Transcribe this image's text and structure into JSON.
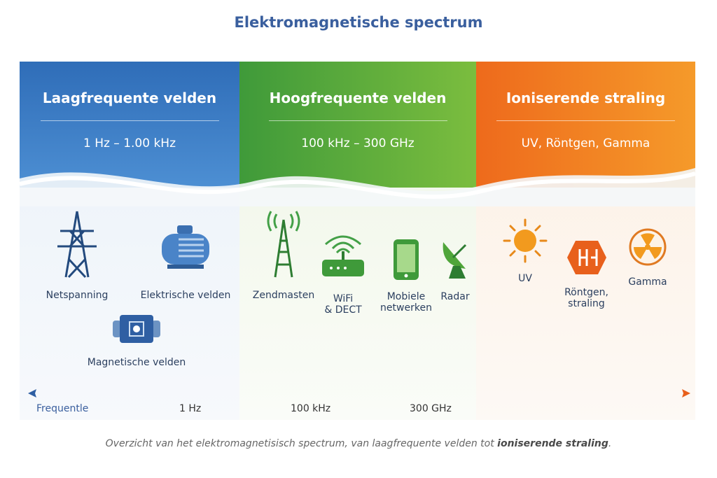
{
  "title": "Elektromagnetische spectrum",
  "panels": [
    {
      "heading": "Laagfrequente velden",
      "range": "1 Hz – 1.00 kHz",
      "color": "#2f6db8",
      "items": [
        "Netspanning",
        "Elektrische velden",
        "Magnetische velden"
      ]
    },
    {
      "heading": "Hoogfrequente velden",
      "range": "100 kHz – 300 GHz",
      "color": "#4fa53a",
      "items": [
        "Zendmasten",
        "WiFi",
        "& DECT",
        "Mobiele",
        "netwerken",
        "Radar"
      ]
    },
    {
      "heading": "Ioniserende straling",
      "range": "UV, Röntgen, Gamma",
      "color": "#ee6a1c",
      "items": [
        "UV",
        "Röntgen,",
        "straling",
        "Gamma"
      ]
    }
  ],
  "axis": {
    "label": "Frequentle",
    "ticks": [
      "1 Hz",
      "100 kHz",
      "300 GHz"
    ]
  },
  "caption": {
    "text": "Overzicht van het elektromagnetisisch spectrum, van laagfrequente velden tot ",
    "bold": "ioniserende straling",
    "end": "."
  }
}
